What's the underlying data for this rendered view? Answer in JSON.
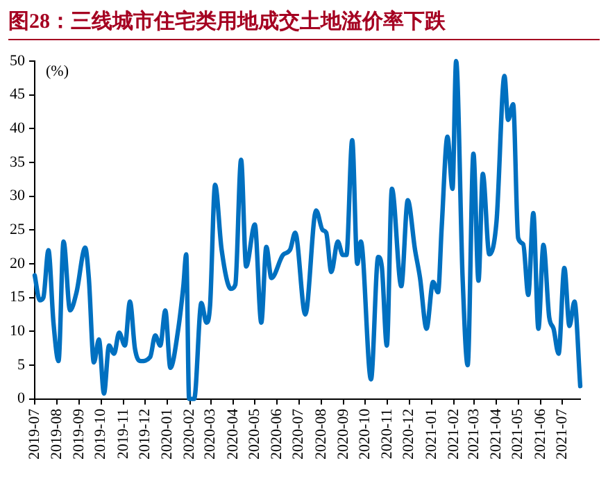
{
  "chart_data": {
    "type": "line",
    "title": "图28：三线城市住宅类用地成交土地溢价率下跌",
    "ylabel": "(%)",
    "x": [
      "2019-07-01",
      "2019-07-08",
      "2019-07-13",
      "2019-07-20",
      "2019-07-27",
      "2019-08-03",
      "2019-08-10",
      "2019-08-19",
      "2019-08-28",
      "2019-09-09",
      "2019-09-14",
      "2019-09-21",
      "2019-09-28",
      "2019-10-05",
      "2019-10-12",
      "2019-10-19",
      "2019-10-26",
      "2019-11-03",
      "2019-11-10",
      "2019-11-17",
      "2019-11-25",
      "2019-12-08",
      "2019-12-15",
      "2019-12-22",
      "2019-12-29",
      "2020-01-05",
      "2020-01-16",
      "2020-01-23",
      "2020-01-27",
      "2020-01-31",
      "2020-02-07",
      "2020-02-17",
      "2020-02-24",
      "2020-02-29",
      "2020-03-07",
      "2020-03-16",
      "2020-03-29",
      "2020-04-04",
      "2020-04-12",
      "2020-04-19",
      "2020-05-01",
      "2020-05-10",
      "2020-05-17",
      "2020-05-24",
      "2020-06-09",
      "2020-06-19",
      "2020-06-26",
      "2020-07-10",
      "2020-07-25",
      "2020-08-03",
      "2020-08-08",
      "2020-08-15",
      "2020-08-24",
      "2020-08-31",
      "2020-09-05",
      "2020-09-13",
      "2020-09-20",
      "2020-09-25",
      "2020-10-09",
      "2020-10-19",
      "2020-10-24",
      "2020-10-31",
      "2020-11-07",
      "2020-11-20",
      "2020-11-29",
      "2020-12-09",
      "2020-12-16",
      "2020-12-25",
      "2021-01-03",
      "2021-01-10",
      "2021-01-15",
      "2021-01-23",
      "2021-01-30",
      "2021-02-04",
      "2021-02-13",
      "2021-02-20",
      "2021-02-28",
      "2021-03-07",
      "2021-03-13",
      "2021-03-22",
      "2021-04-01",
      "2021-04-12",
      "2021-04-17",
      "2021-04-24",
      "2021-05-01",
      "2021-05-08",
      "2021-05-15",
      "2021-05-22",
      "2021-05-29",
      "2021-06-05",
      "2021-06-13",
      "2021-06-19",
      "2021-06-26",
      "2021-07-04",
      "2021-07-11",
      "2021-07-18",
      "2021-07-26"
    ],
    "series": [
      {
        "color": "#0070c0",
        "values": [
          18.3,
          14.6,
          15.0,
          22.0,
          11.3,
          5.6,
          23.3,
          13.1,
          15.8,
          22.4,
          17.9,
          5.4,
          8.8,
          0.8,
          7.9,
          6.7,
          9.8,
          7.9,
          14.4,
          7.4,
          5.6,
          6.2,
          9.4,
          7.9,
          13.1,
          4.6,
          10.4,
          16.7,
          21.4,
          0,
          0,
          14.2,
          11.3,
          13.8,
          31.7,
          22.1,
          16.3,
          16.9,
          35.4,
          19.6,
          25.8,
          11.3,
          22.5,
          17.9,
          21.3,
          22.1,
          24.6,
          12.5,
          27.9,
          25.0,
          24.6,
          18.8,
          23.3,
          21.3,
          21.3,
          38.3,
          20.0,
          23.3,
          2.9,
          21.0,
          19.6,
          7.9,
          31.1,
          16.7,
          29.4,
          22.1,
          17.9,
          10.4,
          17.3,
          15.8,
          25.4,
          38.8,
          31.1,
          50,
          17.9,
          5.0,
          36.3,
          17.5,
          33.3,
          21.4,
          26.3,
          47.8,
          41.3,
          43.6,
          23.8,
          22.9,
          15.4,
          27.5,
          10.4,
          22.8,
          12.1,
          10.4,
          6.7,
          19.4,
          10.8,
          14.4,
          1.9
        ]
      }
    ],
    "xlim": [
      "2019-07-01",
      "2021-07-26"
    ],
    "xticks": [
      "2019-07",
      "2019-08",
      "2019-09",
      "2019-10",
      "2019-11",
      "2019-12",
      "2020-01",
      "2020-02",
      "2020-03",
      "2020-04",
      "2020-05",
      "2020-06",
      "2020-07",
      "2020-08",
      "2020-09",
      "2020-10",
      "2020-11",
      "2020-12",
      "2021-01",
      "2021-02",
      "2021-03",
      "2021-04",
      "2021-05",
      "2021-06",
      "2021-07"
    ],
    "ylim": [
      0,
      50
    ],
    "yticks": [
      0,
      5,
      10,
      15,
      20,
      25,
      30,
      35,
      40,
      45,
      50
    ]
  }
}
